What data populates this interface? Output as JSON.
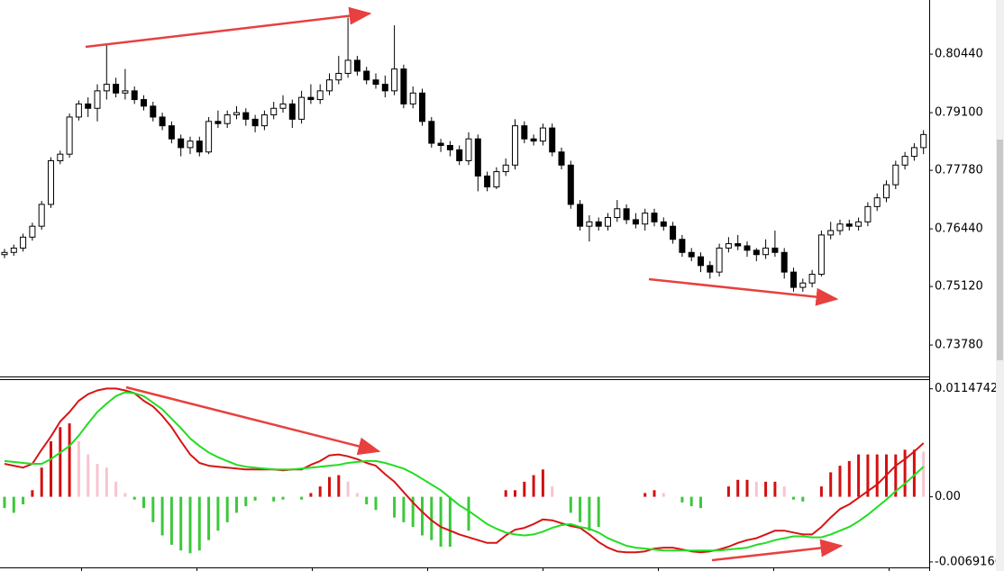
{
  "chart_data": [
    {
      "type": "candlestick",
      "open": [
        0.7585,
        0.759,
        0.76,
        0.7625,
        0.765,
        0.77,
        0.78,
        0.7815,
        0.79,
        0.793,
        0.792,
        0.796,
        0.7975,
        0.7955,
        0.796,
        0.794,
        0.7925,
        0.79,
        0.788,
        0.785,
        0.783,
        0.7845,
        0.782,
        0.789,
        0.7885,
        0.7905,
        0.791,
        0.7895,
        0.788,
        0.7905,
        0.792,
        0.793,
        0.7895,
        0.7945,
        0.794,
        0.796,
        0.7985,
        0.8,
        0.803,
        0.8005,
        0.7985,
        0.7975,
        0.796,
        0.801,
        0.793,
        0.7955,
        0.789,
        0.784,
        0.7835,
        0.7825,
        0.78,
        0.785,
        0.7765,
        0.774,
        0.7775,
        0.779,
        0.788,
        0.785,
        0.7845,
        0.7875,
        0.782,
        0.779,
        0.77,
        0.765,
        0.766,
        0.765,
        0.767,
        0.769,
        0.7665,
        0.7655,
        0.768,
        0.766,
        0.765,
        0.762,
        0.759,
        0.758,
        0.756,
        0.7545,
        0.76,
        0.761,
        0.7605,
        0.7595,
        0.7585,
        0.76,
        0.759,
        0.7545,
        0.751,
        0.752,
        0.754,
        0.763,
        0.764,
        0.7655,
        0.765,
        0.766,
        0.7695,
        0.7715,
        0.7745,
        0.779,
        0.781,
        0.783
      ],
      "high": [
        0.7598,
        0.7608,
        0.7633,
        0.7658,
        0.7708,
        0.7808,
        0.7823,
        0.7908,
        0.7938,
        0.7945,
        0.7975,
        0.8069,
        0.799,
        0.801,
        0.797,
        0.795,
        0.7935,
        0.791,
        0.789,
        0.786,
        0.7855,
        0.7855,
        0.79,
        0.7915,
        0.7915,
        0.7925,
        0.792,
        0.7905,
        0.7915,
        0.7935,
        0.795,
        0.794,
        0.796,
        0.7975,
        0.7975,
        0.8,
        0.804,
        0.8128,
        0.804,
        0.8015,
        0.8,
        0.7995,
        0.811,
        0.802,
        0.797,
        0.7965,
        0.79,
        0.785,
        0.7845,
        0.7835,
        0.7865,
        0.786,
        0.7775,
        0.7785,
        0.7805,
        0.7895,
        0.789,
        0.786,
        0.7885,
        0.7885,
        0.783,
        0.78,
        0.771,
        0.7675,
        0.767,
        0.768,
        0.771,
        0.77,
        0.768,
        0.769,
        0.769,
        0.767,
        0.766,
        0.763,
        0.76,
        0.759,
        0.757,
        0.761,
        0.7625,
        0.763,
        0.7615,
        0.76,
        0.762,
        0.764,
        0.76,
        0.7555,
        0.753,
        0.755,
        0.764,
        0.766,
        0.7665,
        0.7665,
        0.767,
        0.7705,
        0.7725,
        0.7755,
        0.78,
        0.782,
        0.784,
        0.787
      ],
      "low": [
        0.7577,
        0.7582,
        0.7592,
        0.7617,
        0.7642,
        0.7692,
        0.7792,
        0.7807,
        0.7892,
        0.79,
        0.789,
        0.794,
        0.7945,
        0.794,
        0.793,
        0.7915,
        0.789,
        0.787,
        0.784,
        0.781,
        0.7815,
        0.781,
        0.7815,
        0.7875,
        0.7875,
        0.7895,
        0.788,
        0.7865,
        0.787,
        0.7895,
        0.791,
        0.7875,
        0.7885,
        0.793,
        0.793,
        0.795,
        0.7975,
        0.799,
        0.7995,
        0.7975,
        0.7965,
        0.7945,
        0.795,
        0.792,
        0.792,
        0.788,
        0.783,
        0.782,
        0.781,
        0.779,
        0.779,
        0.773,
        0.773,
        0.7735,
        0.7765,
        0.778,
        0.784,
        0.7835,
        0.7835,
        0.781,
        0.778,
        0.769,
        0.764,
        0.7615,
        0.764,
        0.764,
        0.766,
        0.7655,
        0.7645,
        0.764,
        0.765,
        0.764,
        0.761,
        0.758,
        0.757,
        0.7545,
        0.753,
        0.7535,
        0.759,
        0.7595,
        0.758,
        0.757,
        0.7575,
        0.758,
        0.753,
        0.75,
        0.75,
        0.751,
        0.7535,
        0.762,
        0.763,
        0.764,
        0.764,
        0.765,
        0.7685,
        0.7705,
        0.7735,
        0.778,
        0.78,
        0.7815
      ],
      "close": [
        0.759,
        0.76,
        0.7625,
        0.765,
        0.77,
        0.78,
        0.7815,
        0.79,
        0.793,
        0.792,
        0.796,
        0.7975,
        0.7955,
        0.796,
        0.794,
        0.7925,
        0.79,
        0.788,
        0.785,
        0.783,
        0.7845,
        0.782,
        0.789,
        0.7885,
        0.7905,
        0.791,
        0.7895,
        0.788,
        0.7905,
        0.792,
        0.793,
        0.7895,
        0.7945,
        0.794,
        0.796,
        0.7985,
        0.8,
        0.803,
        0.8005,
        0.7985,
        0.7975,
        0.796,
        0.801,
        0.793,
        0.7955,
        0.789,
        0.784,
        0.7835,
        0.7825,
        0.78,
        0.785,
        0.7765,
        0.774,
        0.7775,
        0.779,
        0.788,
        0.785,
        0.7845,
        0.7875,
        0.782,
        0.779,
        0.77,
        0.765,
        0.766,
        0.765,
        0.767,
        0.769,
        0.7665,
        0.7655,
        0.768,
        0.766,
        0.765,
        0.762,
        0.759,
        0.758,
        0.756,
        0.7545,
        0.76,
        0.761,
        0.7605,
        0.7595,
        0.7585,
        0.76,
        0.759,
        0.7545,
        0.751,
        0.752,
        0.754,
        0.763,
        0.764,
        0.7655,
        0.765,
        0.766,
        0.7695,
        0.7715,
        0.7745,
        0.779,
        0.781,
        0.783,
        0.786
      ],
      "colors": {
        "up": "#ffffff",
        "down": "#000000",
        "outline": "#000000"
      },
      "ylim": [
        0.7306,
        0.8168
      ],
      "yticks": [
        {
          "value": 0.8044,
          "label": "0.80440"
        },
        {
          "value": 0.791,
          "label": "0.79100"
        },
        {
          "value": 0.7778,
          "label": "0.77780"
        },
        {
          "value": 0.7644,
          "label": "0.76440"
        },
        {
          "value": 0.7512,
          "label": "0.75120"
        },
        {
          "value": 0.7378,
          "label": "0.73780"
        }
      ]
    },
    {
      "type": "macd",
      "series": [
        {
          "color": "#d71414",
          "values": [
            0.0035,
            0.0033,
            0.0031,
            0.0035,
            0.005,
            0.0064,
            0.008,
            0.009,
            0.0102,
            0.0109,
            0.0113,
            0.0115,
            0.0115,
            0.0113,
            0.011,
            0.0102,
            0.0096,
            0.0086,
            0.0074,
            0.0059,
            0.0045,
            0.0036,
            0.0033,
            0.0032,
            0.0031,
            0.003,
            0.0029,
            0.0029,
            0.0029,
            0.0029,
            0.0028,
            0.0029,
            0.0029,
            0.0034,
            0.0038,
            0.0044,
            0.0045,
            0.0043,
            0.004,
            0.0036,
            0.0033,
            0.0024,
            0.0016,
            0.0005,
            -0.0006,
            -0.0016,
            -0.0025,
            -0.0032,
            -0.0036,
            -0.004,
            -0.0043,
            -0.0046,
            -0.0049,
            -0.0049,
            -0.0041,
            -0.0035,
            -0.0033,
            -0.0029,
            -0.0024,
            -0.0025,
            -0.0028,
            -0.0031,
            -0.0033,
            -0.004,
            -0.0048,
            -0.0054,
            -0.0058,
            -0.0059,
            -0.0059,
            -0.0058,
            -0.0055,
            -0.0054,
            -0.0054,
            -0.0056,
            -0.0058,
            -0.0059,
            -0.0058,
            -0.0056,
            -0.0053,
            -0.0049,
            -0.0046,
            -0.0044,
            -0.004,
            -0.0036,
            -0.0036,
            -0.0038,
            -0.004,
            -0.004,
            -0.0032,
            -0.0022,
            -0.0013,
            -0.0008,
            -0.0001,
            0.0006,
            0.0013,
            0.0023,
            0.0033,
            0.004,
            0.0048,
            0.0057
          ]
        },
        {
          "color": "#22dd22",
          "values": [
            0.0038,
            0.0037,
            0.0036,
            0.0035,
            0.0035,
            0.004,
            0.0047,
            0.0054,
            0.0065,
            0.0078,
            0.009,
            0.0099,
            0.0107,
            0.0111,
            0.011,
            0.0107,
            0.01,
            0.0093,
            0.0083,
            0.0073,
            0.0062,
            0.0054,
            0.0047,
            0.0042,
            0.0038,
            0.0034,
            0.0032,
            0.0031,
            0.003,
            0.0029,
            0.0029,
            0.0029,
            0.003,
            0.0031,
            0.0032,
            0.0033,
            0.0034,
            0.0036,
            0.0037,
            0.0038,
            0.0038,
            0.0036,
            0.0033,
            0.003,
            0.0025,
            0.0019,
            0.0013,
            0.0007,
            -0.0001,
            -0.0009,
            -0.0015,
            -0.0022,
            -0.0029,
            -0.0034,
            -0.0038,
            -0.004,
            -0.0041,
            -0.004,
            -0.0037,
            -0.0033,
            -0.003,
            -0.0029,
            -0.0032,
            -0.0034,
            -0.0038,
            -0.0044,
            -0.0048,
            -0.0052,
            -0.0054,
            -0.0055,
            -0.0056,
            -0.0057,
            -0.0057,
            -0.0057,
            -0.0057,
            -0.0057,
            -0.0057,
            -0.0057,
            -0.0056,
            -0.0055,
            -0.0054,
            -0.0051,
            -0.0049,
            -0.0046,
            -0.0044,
            -0.0042,
            -0.0042,
            -0.0043,
            -0.0043,
            -0.004,
            -0.0036,
            -0.0032,
            -0.0026,
            -0.0019,
            -0.0011,
            -0.0003,
            0.0006,
            0.0014,
            0.0023,
            0.0032
          ]
        }
      ],
      "histogram": {
        "values": [
          -0.0012,
          -0.0017,
          -0.0008,
          0.0007,
          0.0031,
          0.0059,
          0.0074,
          0.0078,
          0.0059,
          0.0045,
          0.0035,
          0.0031,
          0.0016,
          0.0004,
          -0.0003,
          -0.0012,
          -0.0027,
          -0.0041,
          -0.0051,
          -0.0057,
          -0.006,
          -0.0057,
          -0.0046,
          -0.0036,
          -0.0027,
          -0.0017,
          -0.001,
          -0.0004,
          0,
          -0.0005,
          -0.0003,
          0,
          -0.0003,
          0.0004,
          0.0011,
          0.0021,
          0.0023,
          0.0016,
          0.0004,
          -0.0008,
          -0.0014,
          0,
          -0.0022,
          -0.0027,
          -0.0032,
          -0.0041,
          -0.0046,
          -0.0053,
          -0.0053,
          0,
          -0.0036,
          0,
          0,
          0,
          0.0007,
          0.0007,
          0.0016,
          0.0023,
          0.0029,
          0.0011,
          0,
          -0.0017,
          -0.0027,
          -0.0036,
          -0.0032,
          0,
          0,
          0,
          0,
          0.0004,
          0.0007,
          0.0004,
          0,
          -0.0006,
          -0.001,
          -0.0012,
          0,
          0,
          0.0011,
          0.0018,
          0.0018,
          0.0016,
          0.0016,
          0.0016,
          0.0011,
          -0.0003,
          -0.0005,
          0,
          0.0011,
          0.0026,
          0.0033,
          0.0038,
          0.0045,
          0.0045,
          0.0045,
          0.0045,
          0.0045,
          0.005,
          0.005,
          0.0048
        ],
        "colors": {
          "rising": "#d40f0f",
          "falling": "#f7c4cf",
          "negative": "#3cc83c"
        }
      },
      "ylim": [
        -0.0075,
        0.0124
      ],
      "yticks": [
        0.0114742,
        {
          "value": 0,
          "label": "0.00"
        },
        -0.0069166
      ]
    }
  ]
}
